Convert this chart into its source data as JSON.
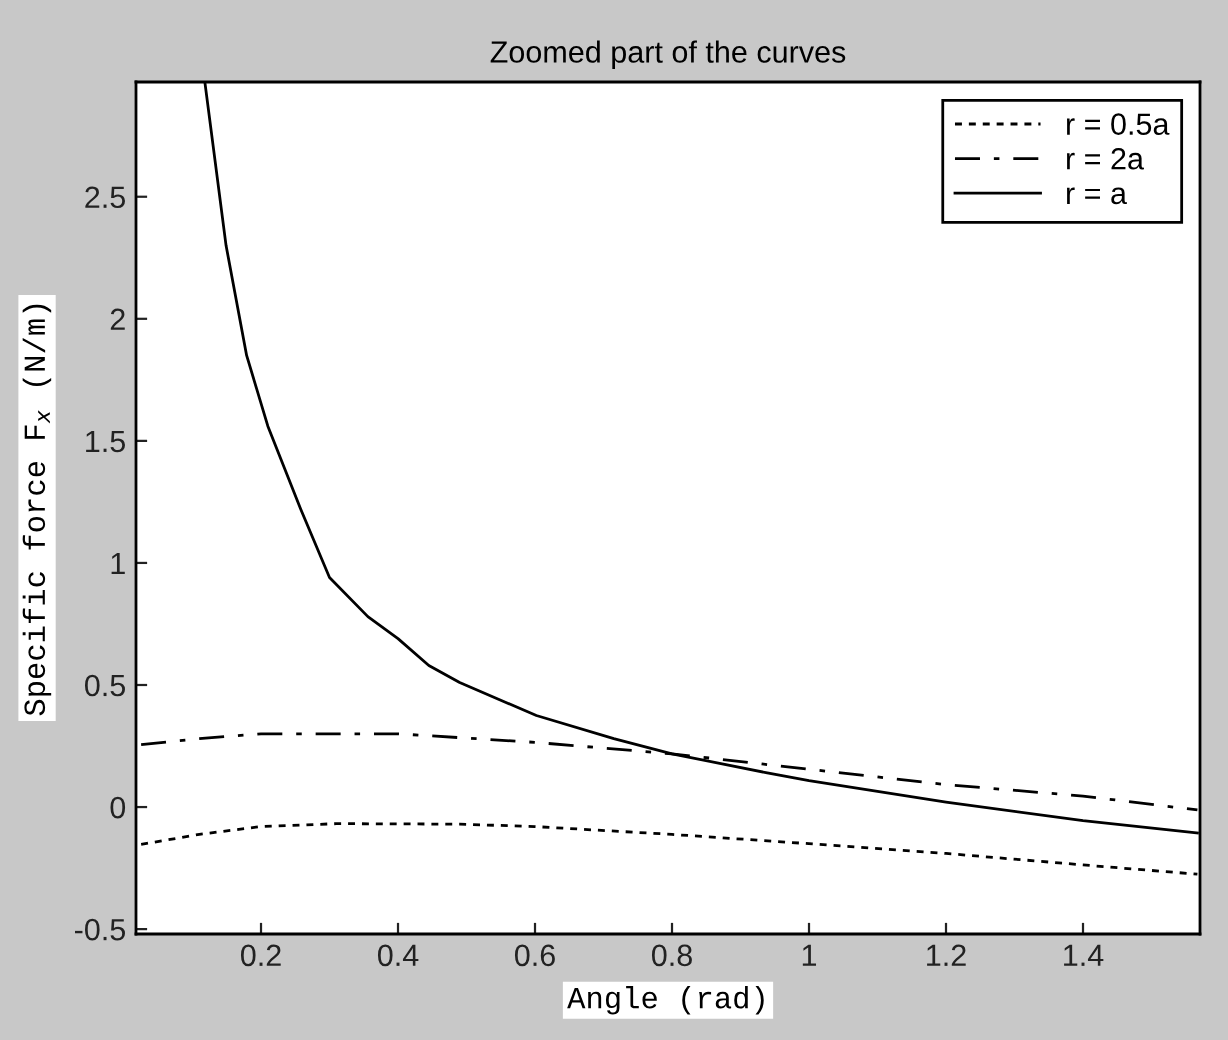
{
  "chart_data": {
    "type": "line",
    "title": "Zoomed part of the curves",
    "xlabel": "Angle (rad)",
    "ylabel": "Specific force F$_{x}$ (N/m)",
    "xlim": [
      0.0175,
      1.5708
    ],
    "ylim": [
      -0.52,
      2.97
    ],
    "xticks": [
      0.2,
      0.4,
      0.6,
      0.8,
      1,
      1.2,
      1.4
    ],
    "yticks": [
      -0.5,
      0,
      0.5,
      1,
      1.5,
      2,
      2.5
    ],
    "grid": false,
    "legend": "top right",
    "series": [
      {
        "name": "r = 0.5a",
        "color": "#000000",
        "line_style": "dotted",
        "x": [
          0.025,
          0.11,
          0.2,
          0.31,
          0.49,
          0.6,
          0.8,
          1.0,
          1.2,
          1.4,
          1.567
        ],
        "values": [
          -0.153,
          -0.112,
          -0.08,
          -0.068,
          -0.07,
          -0.08,
          -0.112,
          -0.15,
          -0.19,
          -0.237,
          -0.275
        ]
      },
      {
        "name": "r = 2a",
        "color": "#000000",
        "line_style": "dashdot",
        "x": [
          0.025,
          0.11,
          0.2,
          0.4,
          0.6,
          0.8,
          1.0,
          1.2,
          1.4,
          1.567
        ],
        "values": [
          0.256,
          0.28,
          0.3,
          0.3,
          0.265,
          0.218,
          0.155,
          0.092,
          0.045,
          -0.012
        ]
      },
      {
        "name": "r = a",
        "color": "#000000",
        "line_style": "solid",
        "x": [
          0.118,
          0.149,
          0.179,
          0.21,
          0.258,
          0.3,
          0.356,
          0.4,
          0.445,
          0.49,
          0.602,
          0.715,
          0.8,
          0.939,
          1.0,
          1.2,
          1.4,
          1.567
        ],
        "values": [
          2.97,
          2.3,
          1.85,
          1.56,
          1.22,
          0.94,
          0.78,
          0.69,
          0.58,
          0.51,
          0.375,
          0.28,
          0.218,
          0.14,
          0.108,
          0.02,
          -0.056,
          -0.106
        ]
      }
    ]
  }
}
